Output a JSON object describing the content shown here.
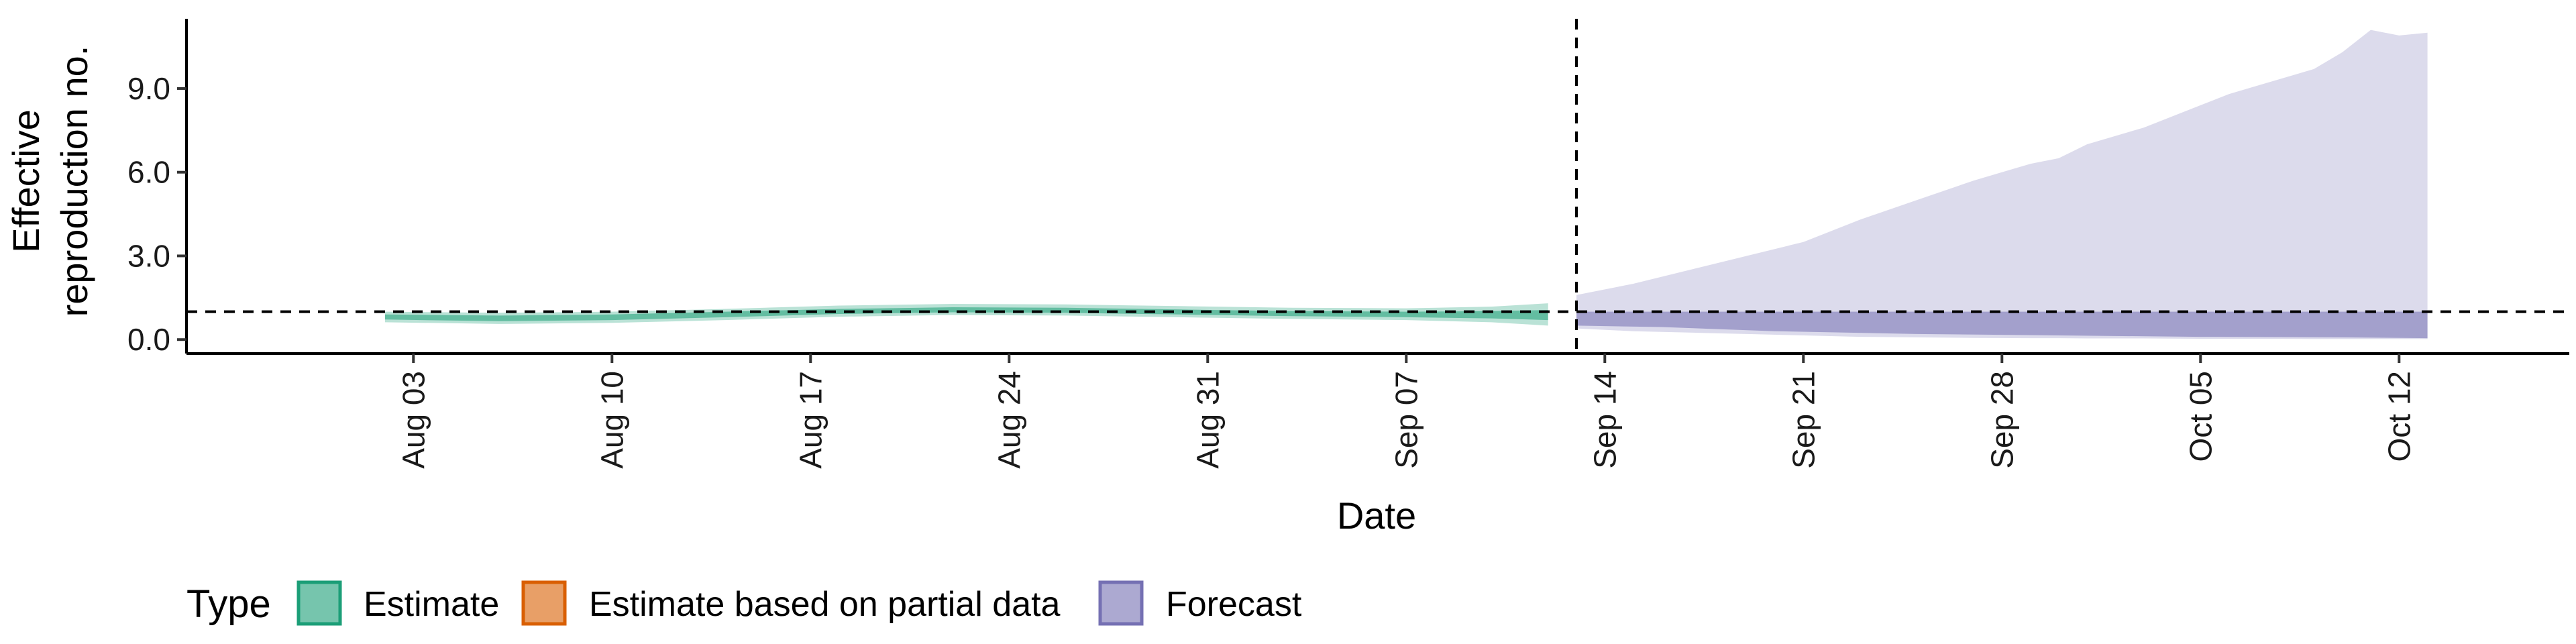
{
  "chart_data": {
    "type": "area",
    "xlabel": "Date",
    "ylabel_lines": [
      "Effective",
      "reproduction no."
    ],
    "x_range": [
      "2021-07-26",
      "2021-10-18"
    ],
    "ylim": [
      -0.5,
      11.5
    ],
    "x_ticks": [
      {
        "date": "2021-08-03",
        "label": "Aug 03"
      },
      {
        "date": "2021-08-10",
        "label": "Aug 10"
      },
      {
        "date": "2021-08-17",
        "label": "Aug 17"
      },
      {
        "date": "2021-08-24",
        "label": "Aug 24"
      },
      {
        "date": "2021-08-31",
        "label": "Aug 31"
      },
      {
        "date": "2021-09-07",
        "label": "Sep 07"
      },
      {
        "date": "2021-09-14",
        "label": "Sep 14"
      },
      {
        "date": "2021-09-21",
        "label": "Sep 21"
      },
      {
        "date": "2021-09-28",
        "label": "Sep 28"
      },
      {
        "date": "2021-10-05",
        "label": "Oct 05"
      },
      {
        "date": "2021-10-12",
        "label": "Oct 12"
      }
    ],
    "y_ticks": [
      {
        "value": 0,
        "label": "0.0"
      },
      {
        "value": 3,
        "label": "3.0"
      },
      {
        "value": 6,
        "label": "6.0"
      },
      {
        "value": 9,
        "label": "9.0"
      }
    ],
    "reference_lines": {
      "horizontal_y": 1.0,
      "vertical_date": "2021-09-13"
    },
    "grid": false,
    "legend": {
      "title": "Type",
      "placement": "bottom",
      "items": [
        {
          "label": "Estimate",
          "fill": "#1B9E77",
          "fill_opacity": 0.6,
          "stroke": "#1B9E77"
        },
        {
          "label": "Estimate based on partial data",
          "fill": "#D95F02",
          "fill_opacity": 0.6,
          "stroke": "#D95F02"
        },
        {
          "label": "Forecast",
          "fill": "#7570B3",
          "fill_opacity": 0.6,
          "stroke": "#7570B3"
        }
      ]
    },
    "series": [
      {
        "type": "Estimate",
        "color": "#1B9E77",
        "bands": [
          {
            "level": "outer",
            "opacity": 0.3,
            "x": [
              "2021-08-02",
              "2021-08-06",
              "2021-08-10",
              "2021-08-14",
              "2021-08-18",
              "2021-08-22",
              "2021-08-26",
              "2021-08-30",
              "2021-09-03",
              "2021-09-07",
              "2021-09-10",
              "2021-09-12"
            ],
            "lower": [
              0.62,
              0.56,
              0.6,
              0.7,
              0.82,
              0.88,
              0.86,
              0.8,
              0.74,
              0.7,
              0.62,
              0.5
            ],
            "upper": [
              1.0,
              0.96,
              1.0,
              1.1,
              1.22,
              1.28,
              1.26,
              1.2,
              1.14,
              1.12,
              1.18,
              1.3
            ]
          },
          {
            "level": "inner",
            "opacity": 0.55,
            "x": [
              "2021-08-02",
              "2021-08-06",
              "2021-08-10",
              "2021-08-14",
              "2021-08-18",
              "2021-08-22",
              "2021-08-26",
              "2021-08-30",
              "2021-09-03",
              "2021-09-07",
              "2021-09-10",
              "2021-09-12"
            ],
            "lower": [
              0.72,
              0.66,
              0.7,
              0.8,
              0.92,
              0.98,
              0.96,
              0.9,
              0.84,
              0.8,
              0.76,
              0.7
            ],
            "upper": [
              0.9,
              0.86,
              0.9,
              1.0,
              1.1,
              1.16,
              1.14,
              1.08,
              1.02,
              1.0,
              1.02,
              1.06
            ]
          }
        ]
      },
      {
        "type": "Forecast",
        "color": "#7570B3",
        "bands": [
          {
            "level": "outer",
            "opacity": 0.25,
            "x": [
              "2021-09-13",
              "2021-09-15",
              "2021-09-17",
              "2021-09-19",
              "2021-09-21",
              "2021-09-23",
              "2021-09-25",
              "2021-09-27",
              "2021-09-29",
              "2021-09-30",
              "2021-10-01",
              "2021-10-03",
              "2021-10-05",
              "2021-10-06",
              "2021-10-07",
              "2021-10-09",
              "2021-10-10",
              "2021-10-11",
              "2021-10-12",
              "2021-10-13"
            ],
            "lower": [
              0.4,
              0.3,
              0.25,
              0.2,
              0.15,
              0.1,
              0.08,
              0.06,
              0.05,
              0.05,
              0.04,
              0.04,
              0.03,
              0.03,
              0.03,
              0.02,
              0.02,
              0.02,
              0.02,
              0.02
            ],
            "upper": [
              1.6,
              2.0,
              2.5,
              3.0,
              3.5,
              4.3,
              5.0,
              5.7,
              6.3,
              6.5,
              7.0,
              7.6,
              8.4,
              8.8,
              9.1,
              9.7,
              10.3,
              11.1,
              10.9,
              11.0
            ]
          },
          {
            "level": "inner",
            "opacity": 0.55,
            "x": [
              "2021-09-13",
              "2021-09-16",
              "2021-09-20",
              "2021-09-25",
              "2021-09-30",
              "2021-10-05",
              "2021-10-10",
              "2021-10-13"
            ],
            "lower": [
              0.5,
              0.45,
              0.3,
              0.2,
              0.15,
              0.1,
              0.08,
              0.05
            ],
            "upper": [
              1.0,
              1.0,
              1.0,
              1.0,
              1.0,
              1.0,
              1.0,
              1.0
            ]
          }
        ]
      }
    ]
  }
}
